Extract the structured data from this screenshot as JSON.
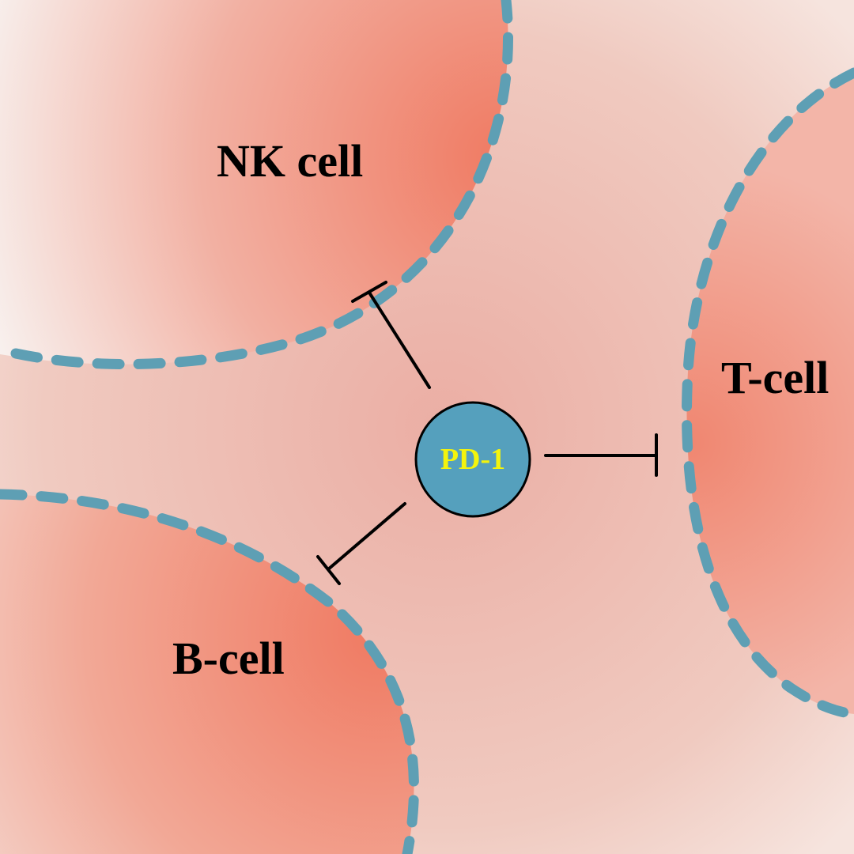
{
  "diagram": {
    "central_node": {
      "label": "PD-1",
      "fill_color": "#55a0bd",
      "text_color": "#f4f40c"
    },
    "cells": [
      {
        "id": "nk",
        "label": "NK cell"
      },
      {
        "id": "t",
        "label": "T-cell"
      },
      {
        "id": "b",
        "label": "B-cell"
      }
    ],
    "edges": [
      {
        "from": "PD-1",
        "to": "NK cell",
        "type": "inhibition"
      },
      {
        "from": "PD-1",
        "to": "T-cell",
        "type": "inhibition"
      },
      {
        "from": "PD-1",
        "to": "B-cell",
        "type": "inhibition"
      }
    ],
    "colors": {
      "background": "#eec8bc",
      "cell_fill": "#f08a74",
      "membrane_dash": "#5e9fb4",
      "inhibition_line": "#000000"
    }
  }
}
